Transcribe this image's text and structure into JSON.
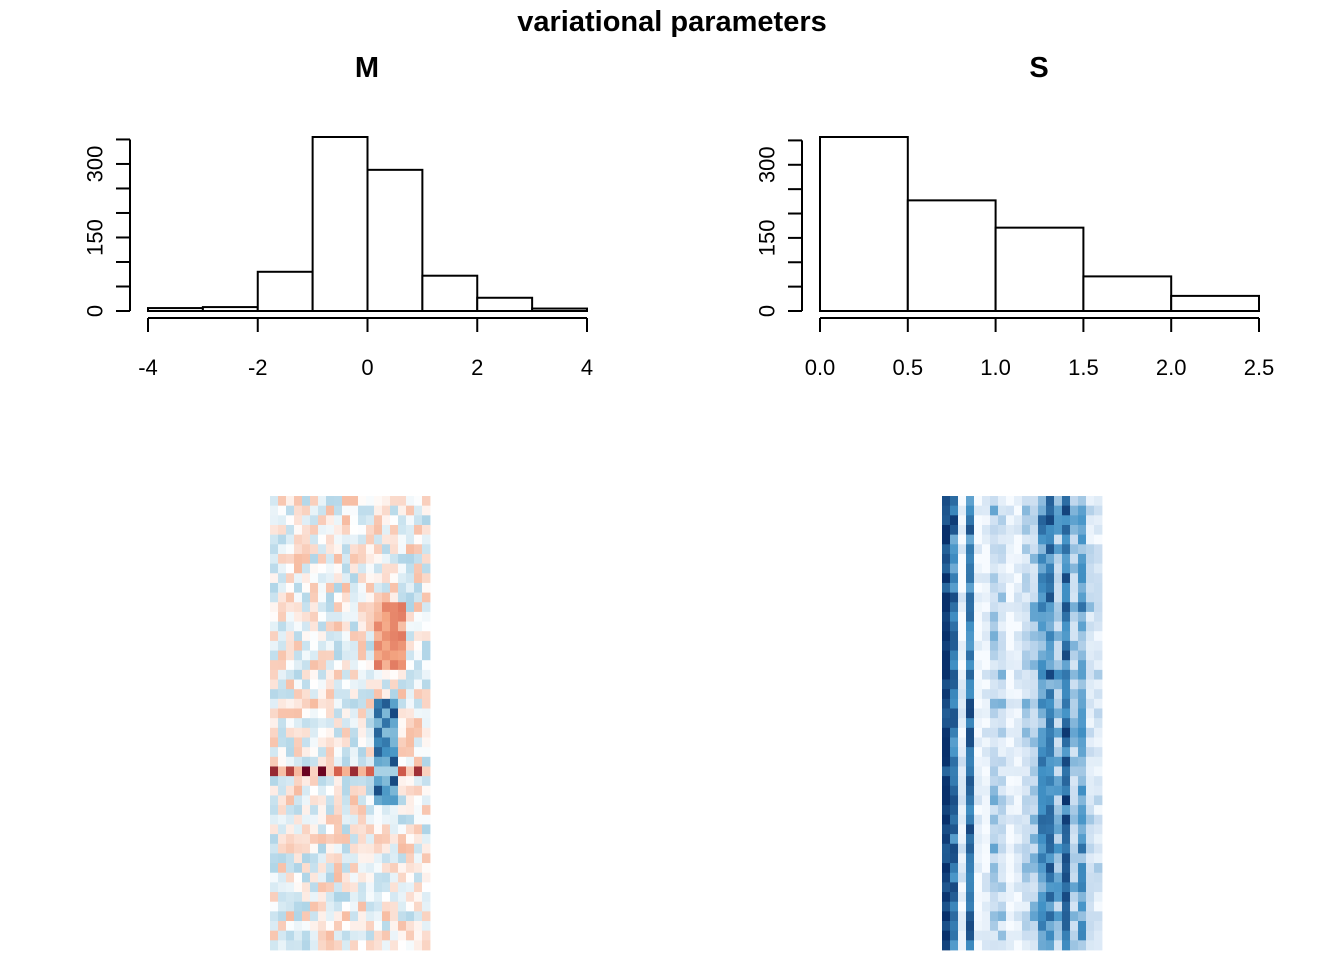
{
  "figure": {
    "title": "variational parameters"
  },
  "chart_data": [
    {
      "type": "bar",
      "subtype": "histogram",
      "title": "M",
      "bin_edges": [
        -4,
        -3,
        -2,
        -1,
        0,
        1,
        2,
        3,
        4
      ],
      "values": [
        6,
        8,
        80,
        355,
        288,
        72,
        27,
        5
      ],
      "xlim": [
        -4,
        4
      ],
      "ylim": [
        0,
        355
      ],
      "x_ticks": [
        -4,
        -2,
        0,
        2,
        4
      ],
      "x_tick_labels": [
        "-4",
        "-2",
        "0",
        "2",
        "4"
      ],
      "y_ticks": [
        0,
        50,
        100,
        150,
        200,
        250,
        300,
        350
      ],
      "y_tick_labels": [
        "0",
        "",
        "",
        "150",
        "",
        "",
        "300",
        ""
      ],
      "grid": false
    },
    {
      "type": "bar",
      "subtype": "histogram",
      "title": "S",
      "bin_edges": [
        0,
        0.5,
        1,
        1.5,
        2,
        2.5
      ],
      "values": [
        357,
        227,
        171,
        71,
        31
      ],
      "xlim": [
        0,
        2.5
      ],
      "ylim": [
        0,
        357
      ],
      "x_ticks": [
        0,
        0.5,
        1,
        1.5,
        2,
        2.5
      ],
      "x_tick_labels": [
        "0.0",
        "0.5",
        "1.0",
        "1.5",
        "2.0",
        "2.5"
      ],
      "y_ticks": [
        0,
        50,
        100,
        150,
        200,
        250,
        300,
        350
      ],
      "y_tick_labels": [
        "0",
        "",
        "",
        "150",
        "",
        "",
        "300",
        ""
      ],
      "grid": false
    },
    {
      "type": "heatmap",
      "colormap": "diverging red-white-blue",
      "colors": {
        "low": "#08306b",
        "mid": "#ffffff",
        "high": "#67001f"
      },
      "rows": 47,
      "cols": 20,
      "strong_row_index": 28,
      "strong_blue_columns": [
        13,
        14,
        15
      ],
      "seed": 7
    },
    {
      "type": "heatmap",
      "colormap": "sequential blues",
      "colors": {
        "low": "#f7fbff",
        "high": "#08306b"
      },
      "rows": 47,
      "cols": 20,
      "column_levels": [
        0.95,
        0.75,
        0.1,
        0.78,
        0.05,
        0.1,
        0.35,
        0.3,
        0.05,
        0.1,
        0.3,
        0.4,
        0.6,
        0.7,
        0.45,
        0.75,
        0.4,
        0.55,
        0.25,
        0.2
      ],
      "seed": 13
    }
  ]
}
